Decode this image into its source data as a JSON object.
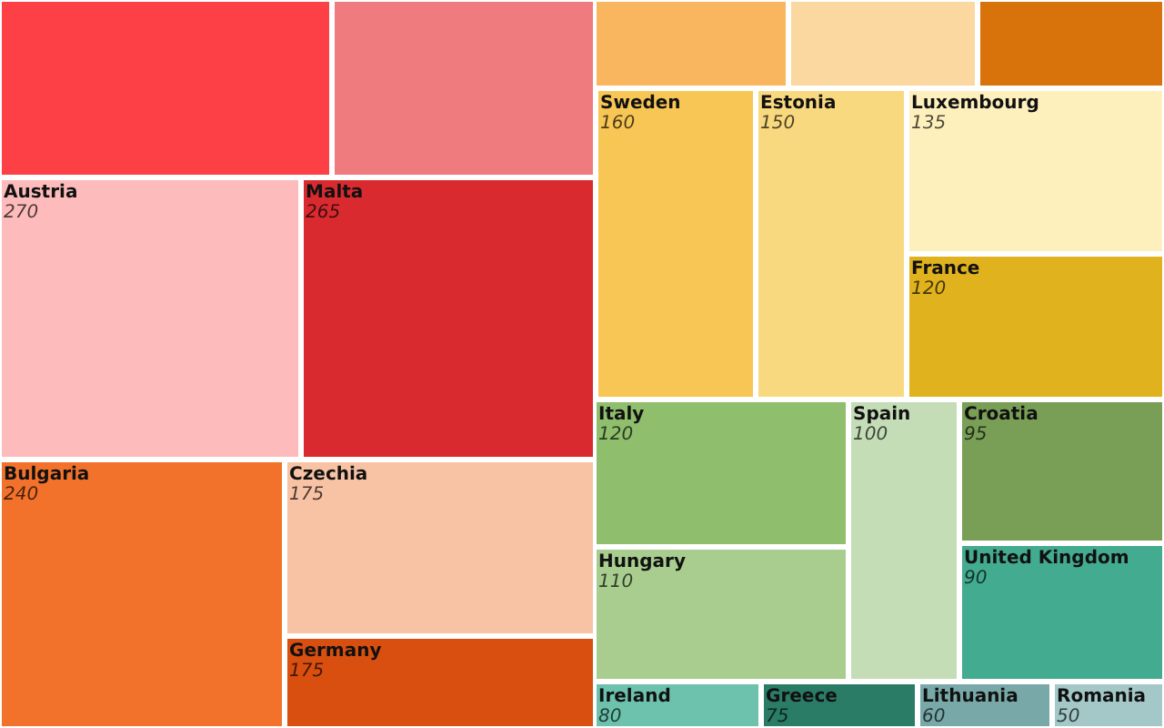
{
  "chart_data": {
    "type": "other",
    "data_labels": true,
    "categories": [
      null,
      null,
      "Austria",
      "Malta",
      "Bulgaria",
      "Czechia",
      "Germany",
      null,
      null,
      null,
      "Sweden",
      "Estonia",
      "Luxembourg",
      "France",
      "Italy",
      "Spain",
      "Croatia",
      "Hungary",
      "United Kingdom",
      "Ireland",
      "Greece",
      "Lithuania",
      "Romania"
    ],
    "values": [
      null,
      null,
      270,
      265,
      240,
      175,
      175,
      null,
      null,
      null,
      160,
      150,
      135,
      120,
      120,
      100,
      95,
      110,
      90,
      80,
      75,
      60,
      50
    ],
    "colors": [
      "#fc4045",
      "#f07b7f",
      "#fdbbbb",
      "#d92b2f",
      "#f2722b",
      "#f8c3a4",
      "#d94f10",
      "#f9b65f",
      "#fbd89f",
      "#d8720b",
      "#f8c655",
      "#f9d97f",
      "#fdf0bd",
      "#e0b21d",
      "#8fbe6d",
      "#c5ddb6",
      "#789f55",
      "#a8cd8f",
      "#43ab8f",
      "#6cc2ac",
      "#2a7c66",
      "#78a8a8",
      "#a4c8c8"
    ]
  }
}
